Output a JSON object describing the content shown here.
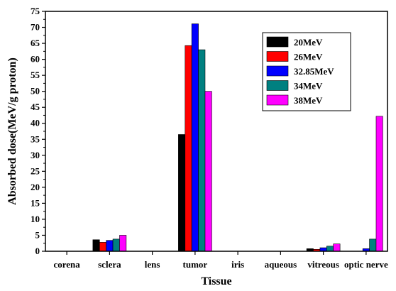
{
  "chart_data": {
    "type": "bar",
    "xlabel": "Tissue",
    "ylabel": "Absorbed dose(MeV/g proton)",
    "ylim": [
      0,
      75
    ],
    "yticks": [
      0,
      5,
      10,
      15,
      20,
      25,
      30,
      35,
      40,
      45,
      50,
      55,
      60,
      65,
      70,
      75
    ],
    "categories": [
      "corena",
      "sclera",
      "lens",
      "tumor",
      "iris",
      "aqueous",
      "vitreous",
      "optic nerve"
    ],
    "legend_position": "top-right",
    "series": [
      {
        "name": "20MeV",
        "color": "#000000",
        "values": [
          0,
          3.6,
          0,
          36.5,
          0,
          0,
          0.8,
          0
        ]
      },
      {
        "name": "26MeV",
        "color": "#ff0000",
        "values": [
          0,
          2.8,
          0,
          64.3,
          0,
          0,
          0.6,
          0
        ]
      },
      {
        "name": "32.85MeV",
        "color": "#0000ff",
        "values": [
          0,
          3.4,
          0,
          71.1,
          0,
          0,
          1.1,
          0.8
        ]
      },
      {
        "name": "34MeV",
        "color": "#008080",
        "values": [
          0,
          3.8,
          0,
          63.0,
          0,
          0,
          1.6,
          3.8
        ]
      },
      {
        "name": "38MeV",
        "color": "#ff00ff",
        "values": [
          0,
          5.0,
          0,
          50.0,
          0,
          0,
          2.3,
          42.2
        ]
      }
    ]
  }
}
